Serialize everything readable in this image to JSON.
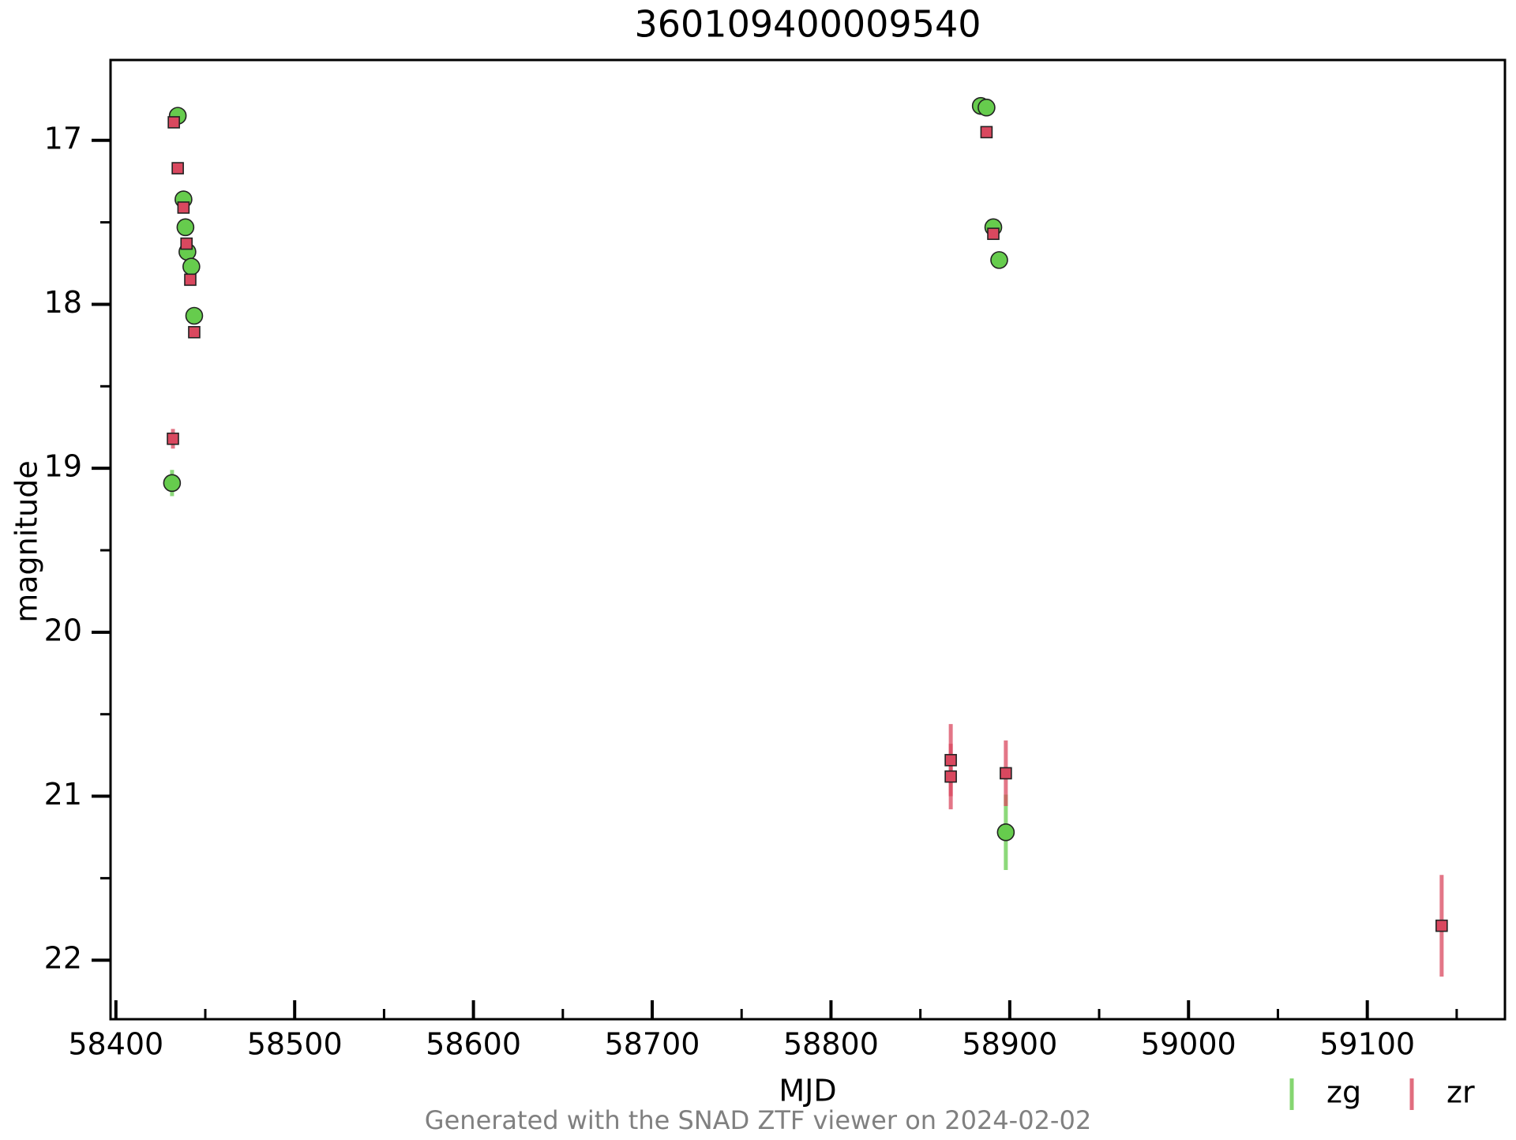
{
  "chart_data": {
    "type": "scatter",
    "title": "360109400009540",
    "x_label": "MJD",
    "y_label": "magnitude",
    "footer": "Generated with the SNAD ZTF viewer on 2024-02-02",
    "xlim": [
      58397,
      59177
    ],
    "xticks": [
      58400,
      58500,
      58600,
      58700,
      58800,
      58900,
      59000,
      59100
    ],
    "xminorticks": [
      58450,
      58550,
      58650,
      58750,
      58850,
      58950,
      59050,
      59150
    ],
    "ylim": [
      22.36,
      16.51
    ],
    "y_inverted": true,
    "yticks": [
      17,
      18,
      19,
      20,
      21,
      22
    ],
    "yminorticks": [
      17.5,
      18.5,
      19.5,
      20.5,
      21.5
    ],
    "legend": "lower right",
    "series": [
      {
        "name": "zg",
        "color": "#66cc4d",
        "marker": "circle",
        "x": [
          58431.4,
          58434.6,
          58437.8,
          58438.9,
          58440.0,
          58442.2,
          58443.8,
          58883.8,
          58887.0,
          58890.8,
          58894.1,
          58897.8
        ],
        "values": [
          19.09,
          16.85,
          17.36,
          17.53,
          17.68,
          17.77,
          18.07,
          16.79,
          16.8,
          17.53,
          17.73,
          21.22
        ],
        "errors": [
          0.08,
          0.02,
          0.02,
          0.02,
          0.02,
          0.02,
          0.02,
          0.02,
          0.02,
          0.02,
          0.02,
          0.23
        ]
      },
      {
        "name": "zr",
        "color": "#d9485f",
        "marker": "square",
        "x": [
          58431.9,
          58432.4,
          58434.6,
          58437.8,
          58439.5,
          58441.6,
          58443.8,
          58887.0,
          58890.8,
          58867.0,
          58867.0,
          58897.8,
          59141.6
        ],
        "values": [
          18.82,
          16.89,
          17.17,
          17.41,
          17.63,
          17.85,
          18.17,
          16.95,
          17.57,
          20.78,
          20.88,
          20.86,
          21.79
        ],
        "errors": [
          0.06,
          0.02,
          0.02,
          0.02,
          0.02,
          0.02,
          0.02,
          0.02,
          0.02,
          0.22,
          0.2,
          0.2,
          0.31
        ]
      }
    ]
  }
}
